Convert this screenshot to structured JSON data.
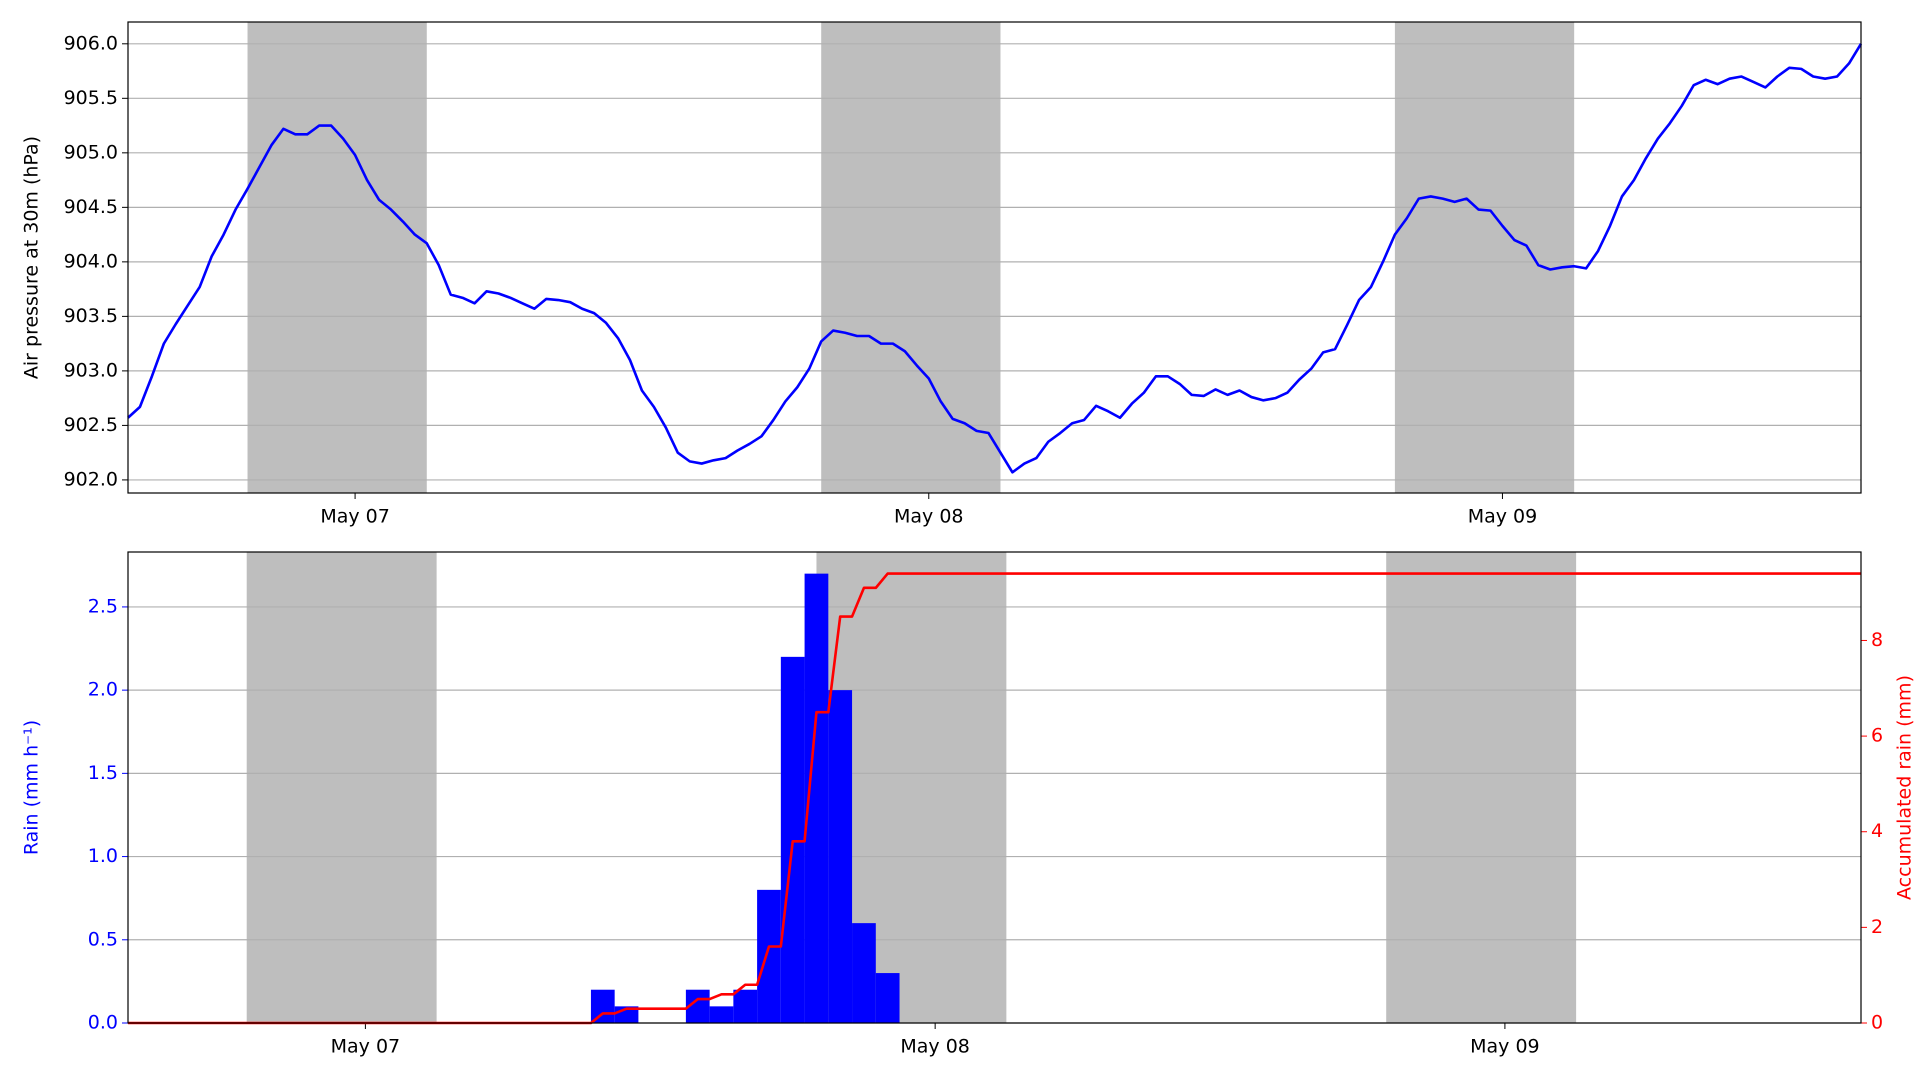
{
  "chart_data": [
    {
      "type": "line",
      "ylabel": "Air pressure at 30m (hPa)",
      "xlim": [
        14.5,
        87
      ],
      "ylim": [
        901.88,
        906.2
      ],
      "xticks": [
        {
          "value": 24,
          "label": "May 07"
        },
        {
          "value": 48,
          "label": "May 08"
        },
        {
          "value": 72,
          "label": "May 09"
        }
      ],
      "yticks": [
        {
          "value": 902,
          "label": "902.0"
        },
        902.5,
        {
          "value": 903,
          "label": "903.0"
        },
        903.5,
        {
          "value": 904,
          "label": "904.0"
        },
        904.5,
        {
          "value": 905,
          "label": "905.0"
        },
        905.5,
        {
          "value": 906,
          "label": "906.0"
        }
      ],
      "grid": true,
      "shade_color": "#bebebe",
      "shaded_spans": [
        [
          19.5,
          27
        ],
        [
          43.5,
          51
        ],
        [
          67.5,
          75
        ]
      ],
      "series": [
        {
          "color": "#0000ff",
          "x": [
            14.5,
            15,
            15.5,
            16,
            16.5,
            17,
            17.5,
            18,
            18.5,
            19,
            19.5,
            20,
            20.5,
            21,
            21.5,
            22,
            22.5,
            23,
            23.5,
            24,
            24.5,
            25,
            25.5,
            26,
            26.5,
            27,
            27.5,
            28,
            28.5,
            29,
            29.5,
            30,
            30.5,
            31,
            31.5,
            32,
            32.5,
            33,
            33.5,
            34,
            34.5,
            35,
            35.5,
            36,
            36.5,
            37,
            37.5,
            38,
            38.5,
            39,
            39.5,
            40,
            40.5,
            41,
            41.5,
            42,
            42.5,
            43,
            43.5,
            44,
            44.5,
            45,
            45.5,
            46,
            46.5,
            47,
            47.5,
            48,
            48.5,
            49,
            49.5,
            50,
            50.5,
            51,
            51.5,
            52,
            52.5,
            53,
            53.5,
            54,
            54.5,
            55,
            55.5,
            56,
            56.5,
            57,
            57.5,
            58,
            58.5,
            59,
            59.5,
            60,
            60.5,
            61,
            61.5,
            62,
            62.5,
            63,
            63.5,
            64,
            64.5,
            65,
            65.5,
            66,
            66.5,
            67,
            67.5,
            68,
            68.5,
            69,
            69.5,
            70,
            70.5,
            71,
            71.5,
            72,
            72.5,
            73,
            73.5,
            74,
            74.5,
            75,
            75.5,
            76,
            76.5,
            77,
            77.5,
            78,
            78.5,
            79,
            79.5,
            80,
            80.5,
            81,
            81.5,
            82,
            82.5,
            83,
            83.5,
            84,
            84.5,
            85,
            85.5,
            86,
            86.5,
            87
          ],
          "values": [
            902.57,
            902.67,
            902.95,
            903.25,
            903.43,
            903.6,
            903.77,
            904.05,
            904.25,
            904.48,
            904.67,
            904.87,
            905.07,
            905.22,
            905.17,
            905.17,
            905.25,
            905.25,
            905.13,
            904.98,
            904.75,
            904.57,
            904.48,
            904.37,
            904.25,
            904.17,
            903.97,
            903.7,
            903.67,
            903.62,
            903.73,
            903.71,
            903.67,
            903.62,
            903.57,
            903.66,
            903.65,
            903.63,
            903.57,
            903.53,
            903.44,
            903.3,
            903.1,
            902.82,
            902.67,
            902.48,
            902.25,
            902.17,
            902.15,
            902.18,
            902.2,
            902.27,
            902.33,
            902.4,
            902.55,
            902.72,
            902.85,
            903.02,
            903.27,
            903.37,
            903.35,
            903.32,
            903.32,
            903.25,
            903.25,
            903.18,
            903.05,
            902.93,
            902.72,
            902.56,
            902.52,
            902.45,
            902.43,
            902.25,
            902.07,
            902.15,
            902.2,
            902.35,
            902.43,
            902.52,
            902.55,
            902.68,
            902.63,
            902.57,
            902.7,
            902.8,
            902.95,
            902.95,
            902.88,
            902.78,
            902.77,
            902.83,
            902.78,
            902.82,
            902.76,
            902.73,
            902.75,
            902.8,
            902.92,
            903.02,
            903.17,
            903.2,
            903.42,
            903.65,
            903.77,
            904.0,
            904.25,
            904.4,
            904.58,
            904.6,
            904.58,
            904.55,
            904.58,
            904.48,
            904.47,
            904.33,
            904.2,
            904.15,
            903.97,
            903.93,
            903.95,
            903.96,
            903.94,
            904.1,
            904.33,
            904.6,
            904.75,
            904.95,
            905.13,
            905.27,
            905.43,
            905.62,
            905.67,
            905.63,
            905.68,
            905.7,
            905.65,
            905.6,
            905.7,
            905.78,
            905.77,
            905.7,
            905.68,
            905.7,
            905.82,
            906.0
          ]
        }
      ]
    },
    {
      "type": "bar",
      "ylabel": "Rain (mm h⁻¹)",
      "y2label": "Accumulated rain (mm)",
      "xlim": [
        14,
        87
      ],
      "ylim": [
        0,
        2.83
      ],
      "y2lim": [
        0,
        9.85
      ],
      "xticks": [
        {
          "value": 24,
          "label": "May 07"
        },
        {
          "value": 48,
          "label": "May 08"
        },
        {
          "value": 72,
          "label": "May 09"
        }
      ],
      "yticks": [
        {
          "value": 0,
          "label": "0.0"
        },
        0.5,
        {
          "value": 1,
          "label": "1.0"
        },
        1.5,
        {
          "value": 2,
          "label": "2.0"
        },
        2.5
      ],
      "y2ticks": [
        0,
        2,
        4,
        6,
        8
      ],
      "grid": true,
      "colored_axes": true,
      "shade_color": "#bebebe",
      "shaded_spans": [
        [
          19,
          27
        ],
        [
          43,
          51
        ],
        [
          67,
          75
        ]
      ],
      "series": [
        {
          "type": "bar",
          "color": "#0000ff",
          "x": [
            34,
            35,
            36,
            37,
            38,
            39,
            40,
            41,
            42,
            43,
            44,
            45,
            46
          ],
          "values": [
            0.2,
            0.1,
            0,
            0,
            0.2,
            0.1,
            0.2,
            0.8,
            2.2,
            2.7,
            2.0,
            0.6,
            0.3
          ]
        },
        {
          "type": "line",
          "axis": "y2",
          "color": "#ff0000",
          "x": [
            14,
            33.5,
            34,
            34.5,
            35,
            37.5,
            38,
            38.5,
            39,
            39.5,
            40,
            40.5,
            41,
            41.5,
            42,
            42.5,
            43,
            43.5,
            44,
            44.5,
            45,
            45.5,
            46,
            87
          ],
          "values": [
            0,
            0,
            0.2,
            0.2,
            0.3,
            0.3,
            0.5,
            0.5,
            0.6,
            0.6,
            0.8,
            0.8,
            1.6,
            1.6,
            3.8,
            3.8,
            6.5,
            6.5,
            8.5,
            8.5,
            9.1,
            9.1,
            9.4,
            9.4
          ]
        }
      ]
    }
  ]
}
